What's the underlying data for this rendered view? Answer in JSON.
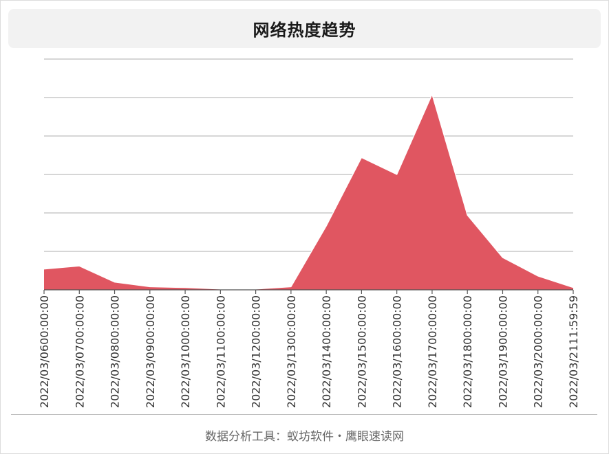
{
  "header": {
    "title": "网络热度趋势"
  },
  "footer": {
    "text": "数据分析工具：蚁坊软件・鹰眼速读网"
  },
  "colors": {
    "area_fill": "#e05661",
    "area_stroke": "#ffffff",
    "gridline": "#bdbdbd",
    "axis": "#555555"
  },
  "chart_data": {
    "type": "area",
    "title": "网络热度趋势",
    "xlabel": "",
    "ylabel": "",
    "y_tick_labels_shown": false,
    "grid": true,
    "legend": "none",
    "ylim": [
      0,
      300
    ],
    "y_gridlines": [
      0,
      50,
      100,
      150,
      200,
      250,
      300
    ],
    "categories": [
      "2022/03/0600:00:00",
      "2022/03/0700:00:00",
      "2022/03/0800:00:00",
      "2022/03/0900:00:00",
      "2022/03/1000:00:00",
      "2022/03/1100:00:00",
      "2022/03/1200:00:00",
      "2022/03/1300:00:00",
      "2022/03/1400:00:00",
      "2022/03/1500:00:00",
      "2022/03/1600:00:00",
      "2022/03/1700:00:00",
      "2022/03/1800:00:00",
      "2022/03/1900:00:00",
      "2022/03/2000:00:00",
      "2022/03/2111:59:59"
    ],
    "series": [
      {
        "values": [
          27,
          31,
          10,
          4,
          3,
          1,
          1,
          4,
          83,
          172,
          150,
          254,
          97,
          42,
          18,
          3
        ]
      }
    ]
  }
}
